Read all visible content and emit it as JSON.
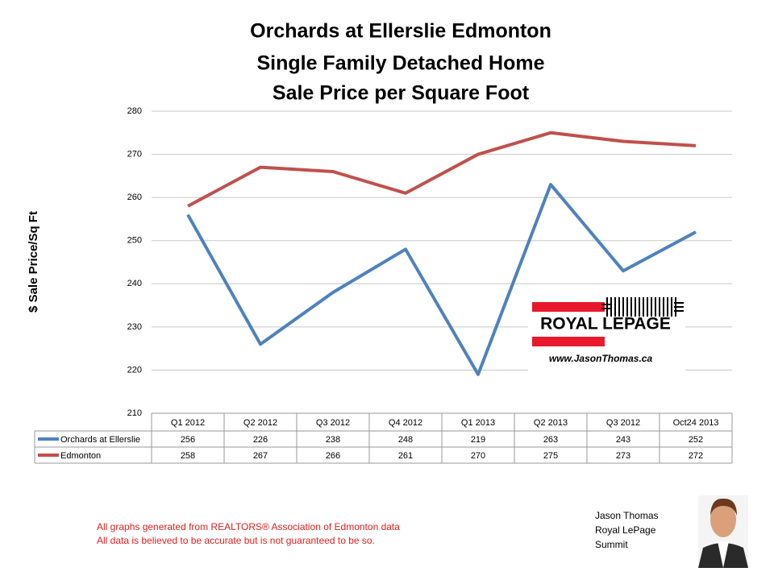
{
  "chart_data": {
    "type": "line",
    "title": [
      "Orchards at Ellerslie Edmonton",
      "Single Family Detached Home",
      "Sale Price per Square Foot"
    ],
    "ylabel": "$ Sale Price/Sq Ft",
    "categories": [
      "Q1 2012",
      "Q2 2012",
      "Q3 2012",
      "Q4 2012",
      "Q1 2013",
      "Q2 2013",
      "Q3 2012",
      "Oct24 2013"
    ],
    "series": [
      {
        "name": "Orchards at Ellerslie",
        "color": "#4f81bd",
        "values": [
          256,
          226,
          238,
          248,
          219,
          263,
          243,
          252
        ]
      },
      {
        "name": "Edmonton",
        "color": "#c0504d",
        "values": [
          258,
          267,
          266,
          261,
          270,
          275,
          273,
          272
        ]
      }
    ],
    "ylim": [
      210,
      280
    ],
    "yticks": [
      210,
      220,
      230,
      240,
      250,
      260,
      270,
      280
    ],
    "grid": true,
    "data_table": true
  },
  "logo": {
    "name": "ROYAL LEPAGE",
    "url": "www.JasonThomas.ca"
  },
  "footnotes": [
    "All graphs generated from REALTORS® Association of Edmonton data",
    "All data is believed to be accurate but is not guaranteed to be so."
  ],
  "author": [
    "Jason Thomas",
    "Royal LePage",
    "Summit"
  ]
}
